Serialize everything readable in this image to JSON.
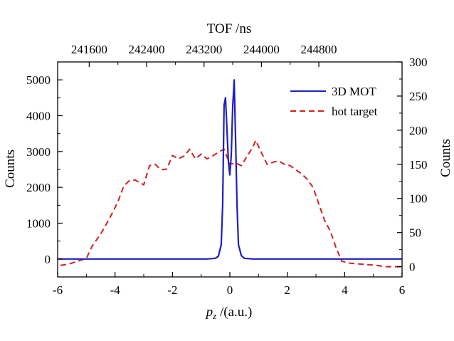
{
  "chart_data": {
    "type": "line",
    "x_axis_bottom": {
      "label_italic": "p",
      "label_sub": "z",
      "label_rest": " /(a.u.)",
      "range": [
        -6,
        6
      ],
      "ticks": [
        "-6",
        "-4",
        "-2",
        "0",
        "2",
        "4",
        "6"
      ]
    },
    "x_axis_top": {
      "label": "TOF /ns",
      "ticks": [
        "241600",
        "242400",
        "243200",
        "244000",
        "244800"
      ],
      "tick_positions_pz": [
        -4.9,
        -2.9,
        -0.9,
        1.1,
        3.1
      ]
    },
    "y_axis_left": {
      "label": "Counts",
      "range": [
        -500,
        5500
      ],
      "ticks": [
        "0",
        "1000",
        "2000",
        "3000",
        "4000",
        "5000"
      ]
    },
    "y_axis_right": {
      "label": "Counts",
      "range": [
        -15,
        300
      ],
      "ticks": [
        "0",
        "50",
        "100",
        "150",
        "200",
        "250",
        "300"
      ]
    },
    "series": [
      {
        "name": "3D MOT",
        "color": "#1f1fc0",
        "style": "solid",
        "axis": "left",
        "x": [
          -6,
          -0.8,
          -0.5,
          -0.4,
          -0.3,
          -0.25,
          -0.2,
          -0.15,
          -0.1,
          -0.05,
          0,
          0.05,
          0.1,
          0.15,
          0.2,
          0.25,
          0.3,
          0.4,
          0.5,
          0.8,
          6
        ],
        "y": [
          0,
          0,
          20,
          80,
          400,
          1500,
          4300,
          4500,
          3600,
          2700,
          2350,
          2900,
          4250,
          5000,
          3300,
          1500,
          400,
          100,
          20,
          0,
          0
        ]
      },
      {
        "name": "hot target",
        "color": "#d42020",
        "style": "dashed",
        "axis": "right",
        "x": [
          -5.9,
          -5.6,
          -5.0,
          -4.8,
          -4.5,
          -4.2,
          -3.9,
          -3.7,
          -3.5,
          -3.3,
          -3.0,
          -2.8,
          -2.6,
          -2.4,
          -2.2,
          -2.0,
          -1.8,
          -1.6,
          -1.4,
          -1.2,
          -1.0,
          -0.8,
          -0.6,
          -0.4,
          -0.2,
          0,
          0.2,
          0.4,
          0.6,
          0.8,
          0.9,
          1.1,
          1.3,
          1.5,
          1.7,
          1.9,
          2.1,
          2.3,
          2.5,
          2.7,
          2.9,
          3.1,
          3.3,
          3.5,
          3.7,
          3.9,
          4.2,
          4.5,
          4.8,
          5.1,
          5.4,
          6.0
        ],
        "y": [
          2,
          4,
          12,
          30,
          48,
          70,
          95,
          118,
          126,
          127,
          120,
          148,
          150,
          142,
          143,
          163,
          158,
          162,
          172,
          158,
          165,
          158,
          162,
          168,
          172,
          150,
          152,
          148,
          162,
          175,
          185,
          167,
          150,
          153,
          155,
          150,
          148,
          142,
          136,
          128,
          116,
          92,
          68,
          52,
          28,
          8,
          5,
          4,
          3,
          2,
          0,
          0
        ]
      }
    ]
  },
  "legend": [
    {
      "label": "3D MOT",
      "color": "#1f1fc0",
      "style": "solid"
    },
    {
      "label": "hot target",
      "color": "#d42020",
      "style": "dashed"
    }
  ]
}
